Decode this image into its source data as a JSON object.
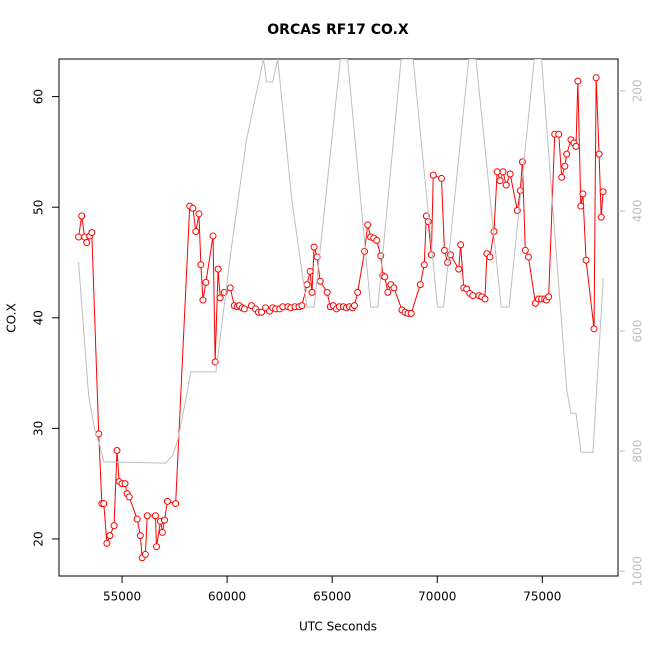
{
  "chart_data": {
    "type": "line",
    "title": "ORCAS RF17 CO.X",
    "xlabel": "UTC Seconds",
    "ylabel": "CO.X",
    "xlim": [
      52000,
      78600
    ],
    "xticks": [
      55000,
      60000,
      65000,
      70000,
      75000
    ],
    "ylim": [
      16.65,
      63.4
    ],
    "yticks": [
      20,
      30,
      40,
      50,
      60
    ],
    "y2lim": [
      1008,
      147
    ],
    "y2ticks": [
      200,
      400,
      600,
      800,
      1000
    ],
    "series": [
      {
        "color": "#ff0000",
        "marker": "circle",
        "x": [
          52930,
          53080,
          53220,
          53320,
          53460,
          53560,
          53890,
          54040,
          54130,
          54280,
          54420,
          54620,
          54760,
          54860,
          55000,
          55140,
          55240,
          55340,
          55720,
          55870,
          55960,
          56110,
          56200,
          56590,
          56640,
          56830,
          56920,
          57020,
          57160,
          57550,
          58220,
          58370,
          58510,
          58660,
          58750,
          58850,
          58990,
          59330,
          59430,
          59570,
          59670,
          59860,
          60150,
          60340,
          60480,
          60580,
          60720,
          60820,
          61160,
          61350,
          61490,
          61640,
          61830,
          62020,
          62170,
          62310,
          62500,
          62650,
          62890,
          63030,
          63230,
          63420,
          63560,
          63800,
          63950,
          64040,
          64140,
          64280,
          64430,
          64760,
          64910,
          65050,
          65200,
          65340,
          65530,
          65680,
          65820,
          65970,
          66060,
          66210,
          66540,
          66690,
          66830,
          66980,
          67120,
          67310,
          67410,
          67500,
          67650,
          67790,
          67940,
          68320,
          68470,
          68610,
          68760,
          69190,
          69380,
          69480,
          69570,
          69720,
          69810,
          70200,
          70340,
          70490,
          70630,
          71020,
          71110,
          71260,
          71400,
          71550,
          71690,
          71980,
          72120,
          72270,
          72360,
          72510,
          72700,
          72850,
          72990,
          73130,
          73280,
          73470,
          73810,
          73950,
          74050,
          74190,
          74340,
          74670,
          74820,
          74960,
          75110,
          75200,
          75300,
          75590,
          75780,
          75920,
          76070,
          76160,
          76360,
          76500,
          76600,
          76690,
          76830,
          76930,
          77080,
          77460,
          77560,
          77700,
          77800,
          77890
        ],
        "values": [
          47.3,
          49.2,
          47.3,
          46.8,
          47.4,
          47.7,
          29.5,
          23.2,
          23.2,
          19.6,
          20.3,
          21.2,
          28.0,
          25.2,
          25.0,
          25.0,
          24.1,
          23.8,
          21.8,
          20.3,
          18.3,
          18.6,
          22.1,
          22.1,
          19.3,
          21.6,
          20.6,
          21.7,
          23.4,
          23.2,
          50.1,
          49.9,
          47.8,
          49.4,
          44.8,
          41.6,
          43.2,
          47.4,
          36.0,
          44.4,
          41.8,
          42.3,
          42.7,
          41.1,
          41.0,
          41.1,
          40.9,
          40.8,
          41.1,
          40.8,
          40.5,
          40.5,
          40.9,
          40.6,
          40.9,
          40.8,
          40.8,
          41.0,
          41.0,
          40.9,
          41.0,
          41.0,
          41.1,
          43.0,
          44.2,
          42.3,
          46.4,
          45.5,
          43.3,
          42.3,
          41.0,
          41.1,
          40.8,
          41.0,
          41.0,
          40.9,
          41.0,
          40.9,
          41.1,
          42.3,
          46.0,
          48.4,
          47.3,
          47.2,
          47.0,
          45.6,
          43.8,
          43.7,
          42.3,
          43.0,
          42.7,
          40.7,
          40.5,
          40.4,
          40.4,
          43.0,
          44.8,
          49.2,
          48.7,
          45.7,
          52.9,
          52.6,
          46.1,
          45.0,
          45.7,
          44.4,
          46.6,
          42.7,
          42.6,
          42.2,
          42.0,
          42.0,
          41.9,
          41.7,
          45.8,
          45.5,
          47.8,
          53.2,
          52.4,
          53.2,
          52.0,
          53.0,
          49.7,
          51.5,
          54.1,
          46.1,
          45.5,
          41.3,
          41.7,
          41.7,
          41.7,
          41.6,
          41.9,
          56.6,
          56.6,
          52.7,
          53.7,
          54.8,
          56.1,
          55.8,
          55.5,
          61.4,
          50.1,
          51.2,
          45.2,
          39.0,
          61.7,
          54.8,
          49.1,
          51.4
        ]
      },
      {
        "color": "#bebebe",
        "axis": "y2",
        "x": [
          52930,
          53170,
          53410,
          53700,
          53940,
          54130,
          57070,
          57410,
          57650,
          58030,
          58270,
          59470,
          60190,
          60920,
          61730,
          61880,
          62170,
          62410,
          63080,
          63800,
          64140,
          65390,
          65730,
          66830,
          67170,
          68280,
          68850,
          70010,
          70300,
          71500,
          71840,
          73040,
          73420,
          74620,
          74960,
          76160,
          76360,
          76600,
          76840,
          77410,
          77610,
          77900
        ],
        "values": [
          485,
          598,
          707,
          765,
          790,
          818,
          820,
          807,
          782,
          715,
          668,
          668,
          465,
          282,
          147,
          185,
          185,
          147,
          382,
          560,
          560,
          147,
          147,
          560,
          560,
          147,
          147,
          560,
          560,
          147,
          147,
          560,
          560,
          147,
          147,
          698,
          737,
          737,
          802,
          802,
          682,
          512
        ]
      }
    ]
  }
}
